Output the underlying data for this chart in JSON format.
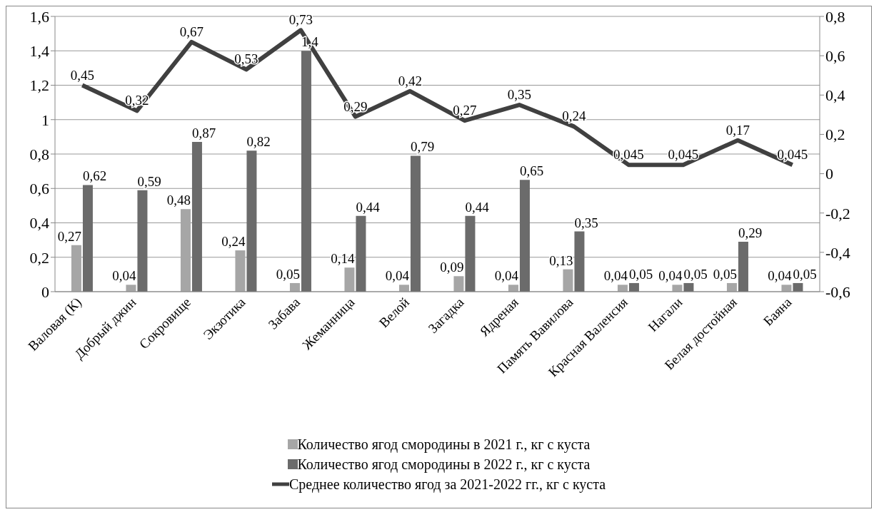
{
  "chart_data": {
    "type": "bar",
    "categories": [
      "Валовая (К)",
      "Добрый джин",
      "Сокровище",
      "Экзотика",
      "Забава",
      "Жеманница",
      "Велой",
      "Загадка",
      "Ядреная",
      "Память Вавилова",
      "Красная Валенсия",
      "Нагали",
      "Белая достойная",
      "Баяна"
    ],
    "series": [
      {
        "name": "Количество ягод смородины в 2021  г., кг с куста",
        "color": "#a6a6a6",
        "values": [
          0.27,
          0.04,
          0.48,
          0.24,
          0.05,
          0.14,
          0.04,
          0.09,
          0.04,
          0.13,
          0.04,
          0.04,
          0.05,
          0.04
        ],
        "value_labels": [
          "0,27",
          "0,04",
          "0,48",
          "0,24",
          "0,05",
          "0,14",
          "0,04",
          "0,09",
          "0,04",
          "0,13",
          "0,04",
          "0,04",
          "0,05",
          "0,04"
        ]
      },
      {
        "name": "Количество ягод смородины в 2022  г., кг с куста",
        "color": "#6b6b6b",
        "values": [
          0.62,
          0.59,
          0.87,
          0.82,
          1.4,
          0.44,
          0.79,
          0.44,
          0.65,
          0.35,
          0.05,
          0.05,
          0.29,
          0.05
        ],
        "value_labels": [
          "0,62",
          "0,59",
          "0,87",
          "0,82",
          "1,4",
          "0,44",
          "0,79",
          "0,44",
          "0,65",
          "0,35",
          "0,05",
          "0,05",
          "0,29",
          "0,05"
        ]
      },
      {
        "name": "Среднее количество ягод за 2021-2022  гг., кг с куста",
        "type": "line",
        "axis": "y2",
        "color": "#404040",
        "values": [
          0.45,
          0.32,
          0.67,
          0.53,
          0.73,
          0.29,
          0.42,
          0.27,
          0.35,
          0.24,
          0.045,
          0.045,
          0.17,
          0.045
        ],
        "value_labels": [
          "0,45",
          "0,32",
          "0,67",
          "0,53",
          "0,73",
          "0,29",
          "0,42",
          "0,27",
          "0,35",
          "0,24",
          "0,045",
          "0,045",
          "0,17",
          "0,045"
        ]
      }
    ],
    "ylim": [
      0,
      1.6
    ],
    "yticks": [
      0,
      {
        "value": 0.2,
        "label": "0,2"
      },
      {
        "value": 0.4,
        "label": "0,4"
      },
      {
        "value": 0.6,
        "label": "0,6"
      },
      {
        "value": 0.8,
        "label": "0,8"
      },
      1,
      {
        "value": 1.2,
        "label": "1,2"
      },
      {
        "value": 1.4,
        "label": "1,4"
      },
      {
        "value": 1.6,
        "label": "1,6"
      }
    ],
    "y2lim": [
      -0.6,
      0.8
    ],
    "y2ticks": [
      {
        "value": -0.6,
        "label": "-0,6"
      },
      {
        "value": -0.4,
        "label": "-0,4"
      },
      {
        "value": -0.2,
        "label": "-0,2"
      },
      0,
      {
        "value": 0.2,
        "label": "0,2"
      },
      {
        "value": 0.4,
        "label": "0,4"
      },
      {
        "value": 0.6,
        "label": "0,6"
      },
      {
        "value": 0.8,
        "label": "0,8"
      }
    ],
    "grid": "y",
    "legend": "bottom",
    "marker": "none",
    "line_style": "solid"
  }
}
